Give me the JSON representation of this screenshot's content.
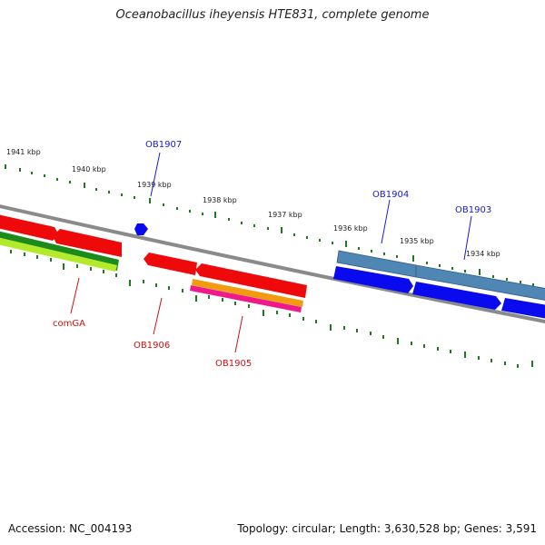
{
  "title": "Oceanobacillus iheyensis HTE831, complete genome",
  "footer": {
    "accession": "Accession: NC_004193",
    "summary": "Topology: circular; Length: 3,630,528 bp; Genes: 3,591"
  },
  "kbp_labels": [
    "1941 kbp",
    "1940 kbp",
    "1939 kbp",
    "1938 kbp",
    "1937 kbp",
    "1936 kbp",
    "1935 kbp",
    "1934 kbp"
  ],
  "gene_labels": {
    "ob1907": "OB1907",
    "ob1904": "OB1904",
    "ob1903": "OB1903",
    "comga": "comGA",
    "ob1906": "OB1906",
    "ob1905": "OB1905"
  },
  "colors": {
    "forward_gene": "#0000ee",
    "forward_gene_alt": "#4f86b4",
    "reverse_gene": "#ee0000",
    "backbone": "#888888",
    "ticks": "#1e7a1e"
  }
}
